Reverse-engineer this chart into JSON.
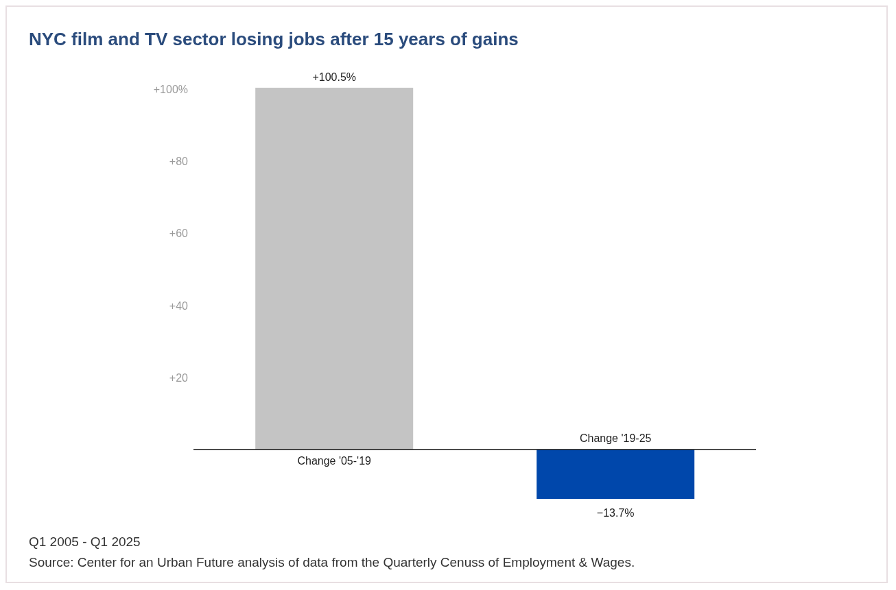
{
  "chart_data": {
    "type": "bar",
    "title": "NYC film and TV sector losing jobs after 15 years of gains",
    "categories": [
      "Change '05-'19",
      "Change '19-25"
    ],
    "values": [
      100.5,
      -13.7
    ],
    "colors": [
      "#c4c4c4",
      "#0047ab"
    ],
    "value_labels": [
      "+100.5%",
      "−13.7%"
    ],
    "ylim": [
      -13.7,
      100.5
    ],
    "yticks": [
      {
        "value": 20,
        "label": "+20"
      },
      {
        "value": 40,
        "label": "+40"
      },
      {
        "value": 60,
        "label": "+60"
      },
      {
        "value": 80,
        "label": "+80"
      },
      {
        "value": 100,
        "label": "+100%"
      }
    ],
    "grid": false,
    "legend": false,
    "annotations": [
      "Q1 2005 - Q1 2025",
      "Source: Center for an Urban Future analysis of data from the Quarterly Cenuss of Employment & Wages."
    ]
  }
}
